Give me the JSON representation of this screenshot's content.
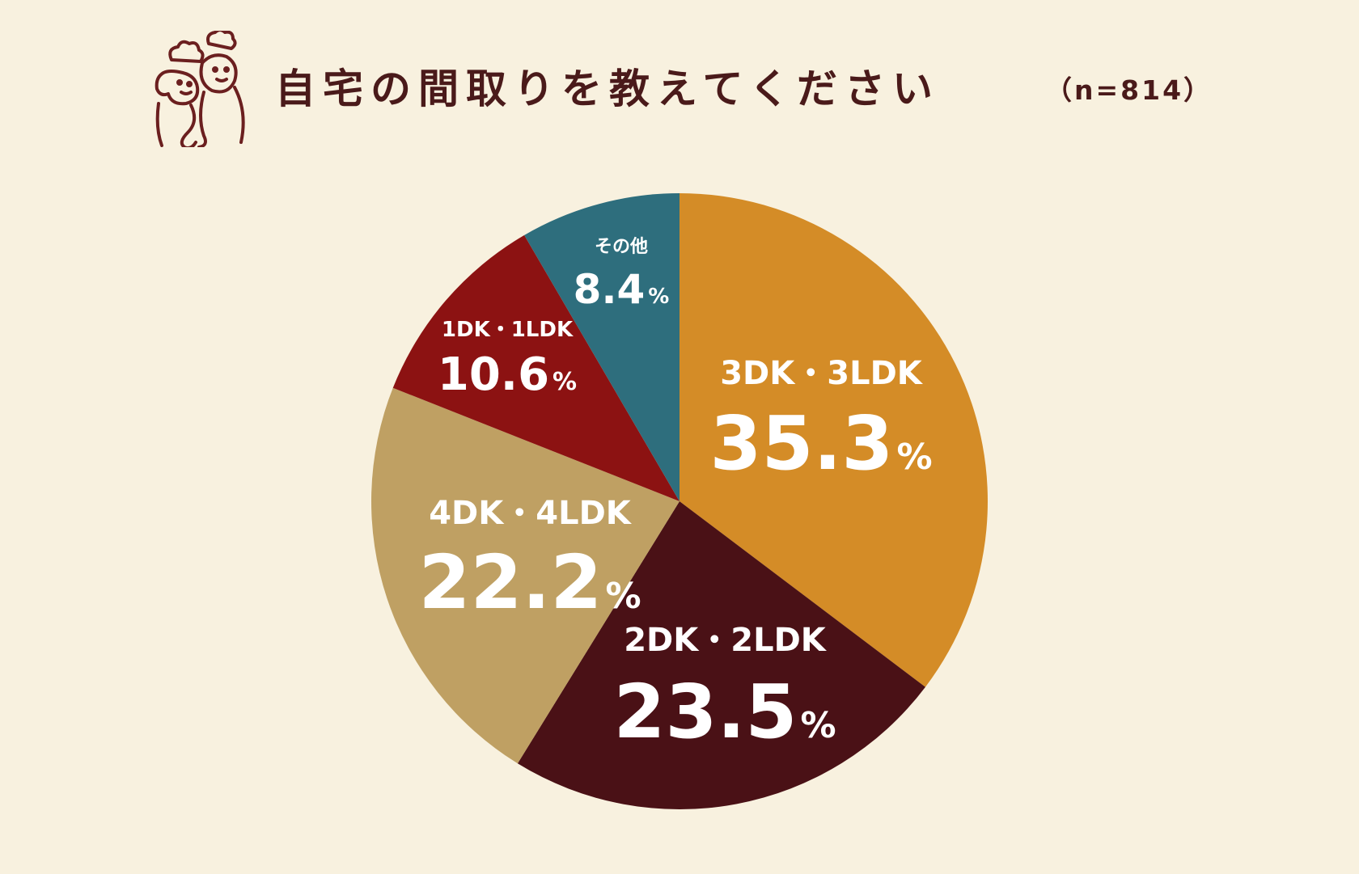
{
  "title": "自宅の間取りを教えてください",
  "subtitle": "（n=814）",
  "colors": {
    "background": "#f8f1df",
    "title": "#4a1a1a"
  },
  "chart_data": {
    "type": "pie",
    "title": "自宅の間取りを教えてください",
    "unit": "%",
    "start_angle_deg": 0,
    "direction": "clockwise",
    "slices": [
      {
        "label": "3DK・3LDK",
        "value": 35.3,
        "value_label": "35.3",
        "color": "#d48c27"
      },
      {
        "label": "2DK・2LDK",
        "value": 23.5,
        "value_label": "23.5",
        "color": "#4a1116"
      },
      {
        "label": "4DK・4LDK",
        "value": 22.2,
        "value_label": "22.2",
        "color": "#bfa063"
      },
      {
        "label": "1DK・1LDK",
        "value": 10.6,
        "value_label": "10.6",
        "color": "#8c1212"
      },
      {
        "label": "その他",
        "value": 8.4,
        "value_label": "8.4",
        "color": "#2e6e7d"
      }
    ]
  }
}
